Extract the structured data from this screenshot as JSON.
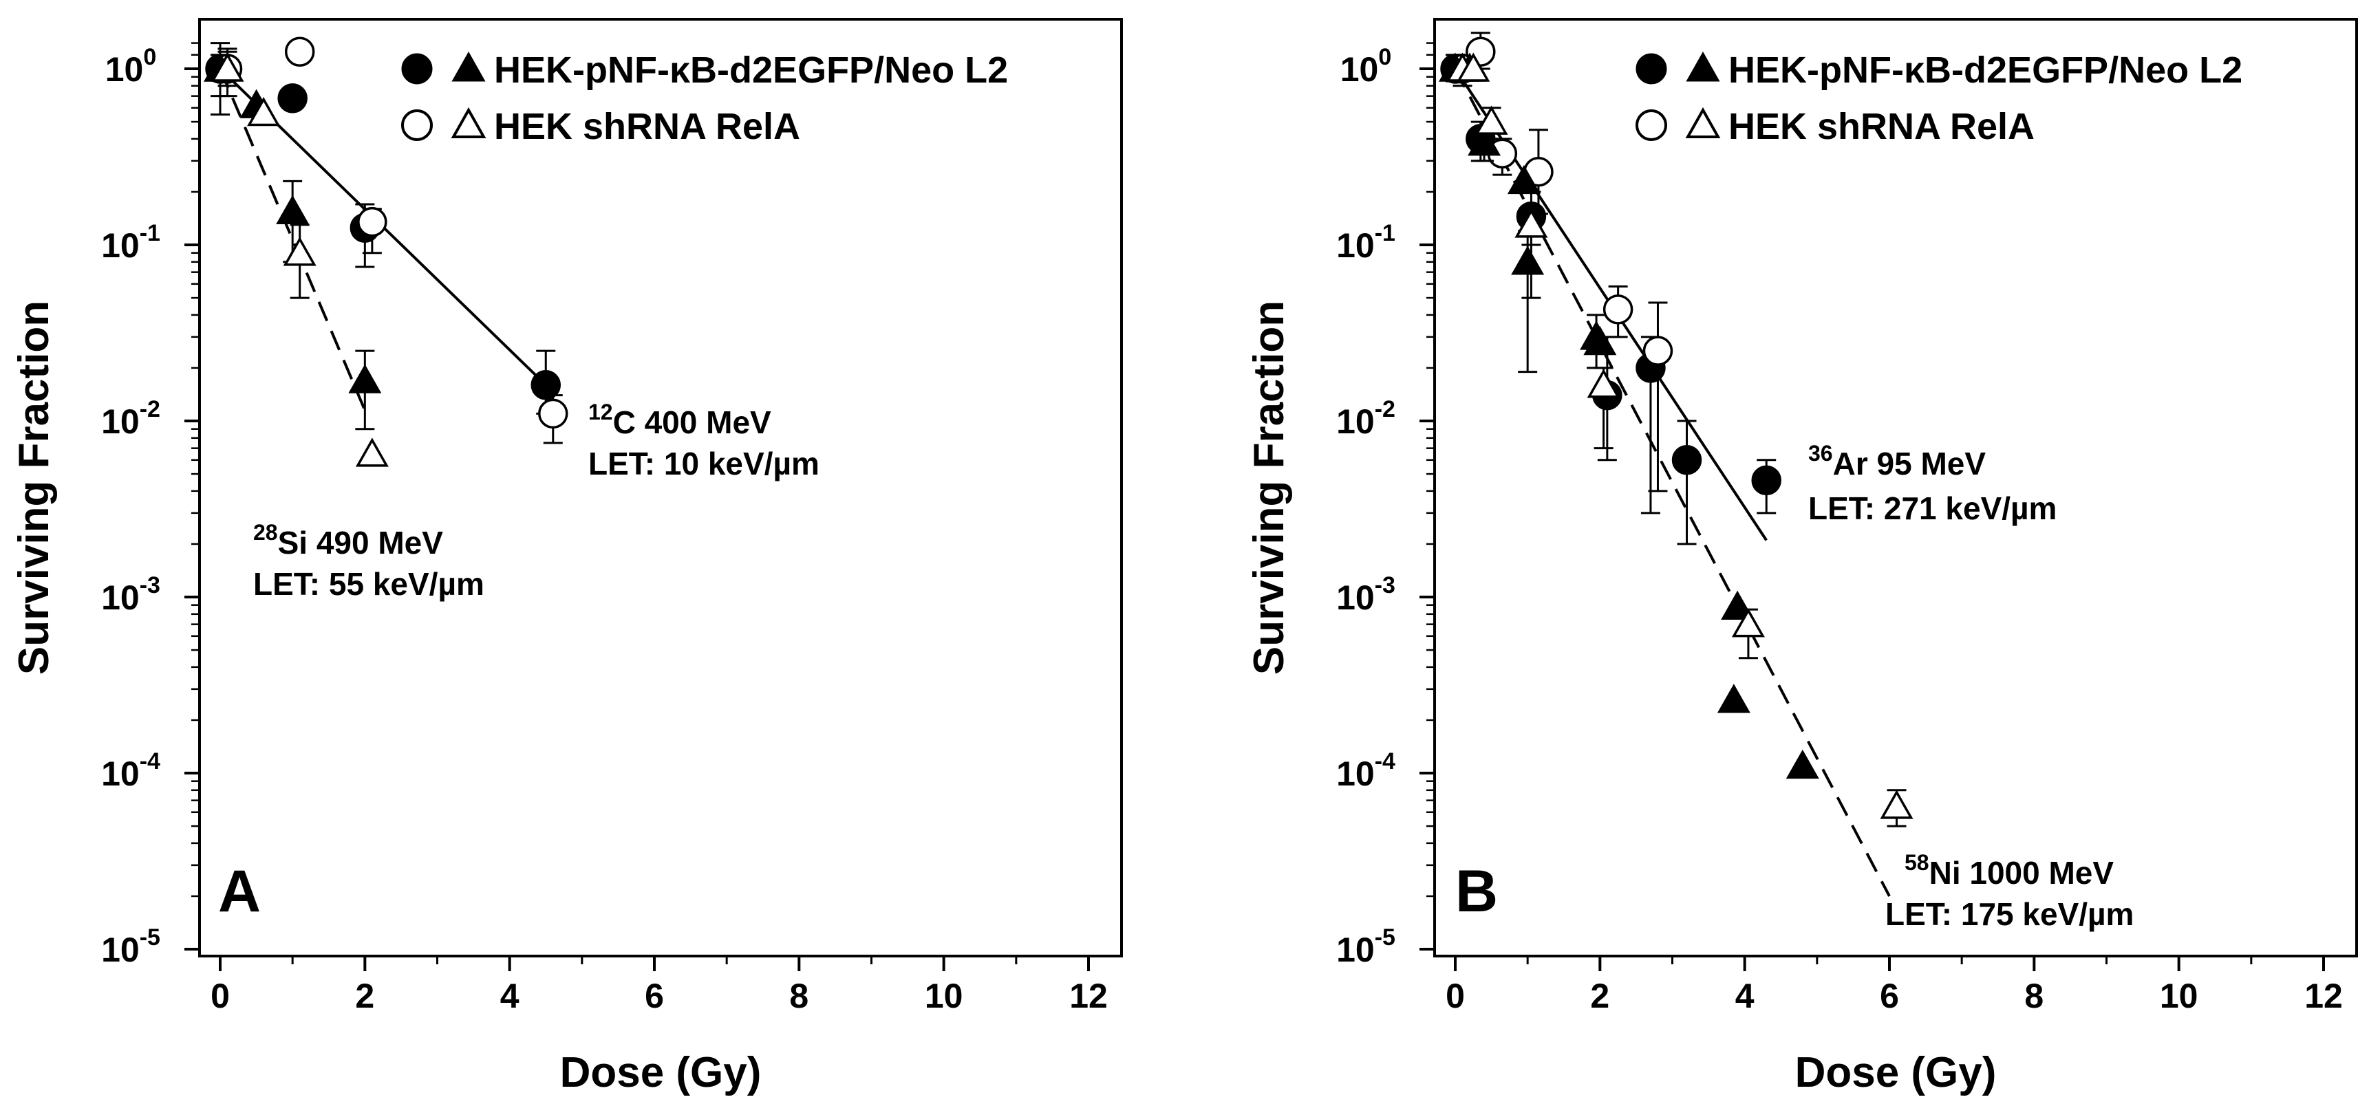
{
  "figure": {
    "legend": {
      "series1": "HEK-pNF-κB-d2EGFP/Neo L2",
      "series2": "HEK shRNA RelA"
    },
    "colors": {
      "filled": "#000000",
      "open": "#ffffff",
      "stroke": "#000000"
    }
  },
  "chart_data": [
    {
      "type": "scatter",
      "panel": "A",
      "title": "",
      "xlabel": "Dose (Gy)",
      "ylabel": "Surviving Fraction",
      "xlim": [
        0,
        12
      ],
      "ylim": [
        1e-05,
        1.5
      ],
      "yscale": "log",
      "x_ticks": [
        0,
        2,
        4,
        6,
        8,
        10,
        12
      ],
      "y_ticks": [
        {
          "value": 1,
          "base": "10",
          "exp": "0"
        },
        {
          "value": 0.1,
          "base": "10",
          "exp": "-1"
        },
        {
          "value": 0.01,
          "base": "10",
          "exp": "-2"
        },
        {
          "value": 0.001,
          "base": "10",
          "exp": "-3"
        },
        {
          "value": 0.0001,
          "base": "10",
          "exp": "-4"
        },
        {
          "value": 1e-05,
          "base": "10",
          "exp": "-5"
        }
      ],
      "series": [
        {
          "name": "HEK-pNF-κB-d2EGFP/Neo L2 (12C)",
          "marker": "filled-circle",
          "points": [
            {
              "x": 0,
              "y": 1.0,
              "err": [
                0.7,
                1.4
              ]
            },
            {
              "x": 1.0,
              "y": 0.68
            },
            {
              "x": 2.0,
              "y": 0.125,
              "err": [
                0.075,
                0.17
              ]
            },
            {
              "x": 4.5,
              "y": 0.016,
              "err": [
                0.011,
                0.025
              ]
            }
          ]
        },
        {
          "name": "HEK shRNA RelA (12C)",
          "marker": "open-circle",
          "points": [
            {
              "x": 0.1,
              "y": 1.0,
              "err": [
                0.8,
                1.25
              ]
            },
            {
              "x": 1.1,
              "y": 1.25
            },
            {
              "x": 2.1,
              "y": 0.135,
              "err": [
                0.09,
                0.16
              ]
            },
            {
              "x": 4.6,
              "y": 0.011,
              "err": [
                0.0075,
                0.014
              ]
            }
          ]
        },
        {
          "name": "HEK-pNF-κB-d2EGFP/Neo L2 (28Si)",
          "marker": "filled-triangle",
          "points": [
            {
              "x": 0,
              "y": 1.0,
              "err": [
                0.55,
                1.2
              ]
            },
            {
              "x": 0.5,
              "y": 0.62
            },
            {
              "x": 1.0,
              "y": 0.155,
              "err": [
                0.08,
                0.23
              ]
            },
            {
              "x": 2.0,
              "y": 0.017,
              "err": [
                0.009,
                0.025
              ]
            }
          ]
        },
        {
          "name": "HEK shRNA RelA (28Si)",
          "marker": "open-triangle",
          "points": [
            {
              "x": 0.1,
              "y": 1.0,
              "err": [
                0.7,
                1.3
              ]
            },
            {
              "x": 0.6,
              "y": 0.56
            },
            {
              "x": 1.1,
              "y": 0.09,
              "err": [
                0.05,
                0.13
              ]
            },
            {
              "x": 2.1,
              "y": 0.0065
            }
          ]
        }
      ],
      "fits": [
        {
          "name": "12C fit",
          "style": "solid",
          "x": [
            0,
            4.5
          ],
          "y": [
            1.0,
            0.016
          ]
        },
        {
          "name": "28Si fit",
          "style": "dashed",
          "x": [
            0,
            2.0
          ],
          "y": [
            1.0,
            0.0115
          ]
        }
      ],
      "annotations": [
        {
          "mass": "12",
          "ion": "C 400 MeV",
          "let": "LET: 10 keV/µm"
        },
        {
          "mass": "28",
          "ion": "Si 490 MeV",
          "let": "LET: 55 keV/µm"
        }
      ],
      "panel_letter": "A"
    },
    {
      "type": "scatter",
      "panel": "B",
      "title": "",
      "xlabel": "Dose (Gy)",
      "ylabel": "Surviving Fraction",
      "xlim": [
        0,
        12
      ],
      "ylim": [
        1e-05,
        1.5
      ],
      "yscale": "log",
      "x_ticks": [
        0,
        2,
        4,
        6,
        8,
        10,
        12
      ],
      "y_ticks": [
        {
          "value": 1,
          "base": "10",
          "exp": "0"
        },
        {
          "value": 0.1,
          "base": "10",
          "exp": "-1"
        },
        {
          "value": 0.01,
          "base": "10",
          "exp": "-2"
        },
        {
          "value": 0.001,
          "base": "10",
          "exp": "-3"
        },
        {
          "value": 0.0001,
          "base": "10",
          "exp": "-4"
        },
        {
          "value": 1e-05,
          "base": "10",
          "exp": "-5"
        }
      ],
      "series": [
        {
          "name": "HEK-pNF-κB-d2EGFP/Neo L2 (36Ar)",
          "marker": "filled-circle",
          "points": [
            {
              "x": 0,
              "y": 1.0,
              "err": [
                0.85,
                1.2
              ]
            },
            {
              "x": 0.35,
              "y": 0.4,
              "err": [
                0.3,
                0.5
              ]
            },
            {
              "x": 1.05,
              "y": 0.145,
              "err": [
                0.05,
                0.2
              ]
            },
            {
              "x": 2.1,
              "y": 0.014,
              "err": [
                0.006,
                0.03
              ]
            },
            {
              "x": 2.7,
              "y": 0.02,
              "err": [
                0.003,
                0.03
              ]
            },
            {
              "x": 3.2,
              "y": 0.006,
              "err": [
                0.002,
                0.01
              ]
            },
            {
              "x": 4.3,
              "y": 0.0046,
              "err": [
                0.003,
                0.006
              ]
            }
          ]
        },
        {
          "name": "HEK shRNA RelA (36Ar)",
          "marker": "open-circle",
          "points": [
            {
              "x": 0.1,
              "y": 1.0,
              "err": [
                0.8,
                1.2
              ]
            },
            {
              "x": 0.35,
              "y": 1.25,
              "err": [
                1.0,
                1.6
              ]
            },
            {
              "x": 0.65,
              "y": 0.33,
              "err": [
                0.25,
                0.4
              ]
            },
            {
              "x": 1.15,
              "y": 0.26,
              "err": [
                0.15,
                0.45
              ]
            },
            {
              "x": 2.25,
              "y": 0.043,
              "err": [
                0.03,
                0.058
              ]
            },
            {
              "x": 2.8,
              "y": 0.025,
              "err": [
                0.004,
                0.047
              ]
            }
          ]
        },
        {
          "name": "HEK-pNF-κB-d2EGFP/Neo L2 (58Ni)",
          "marker": "filled-triangle",
          "points": [
            {
              "x": 0,
              "y": 1.0
            },
            {
              "x": 0.2,
              "y": 1.0
            },
            {
              "x": 0.4,
              "y": 0.38,
              "err": [
                0.3,
                0.45
              ]
            },
            {
              "x": 0.95,
              "y": 0.23
            },
            {
              "x": 1.0,
              "y": 0.08,
              "err": [
                0.019,
                0.12
              ]
            },
            {
              "x": 1.95,
              "y": 0.03,
              "err": [
                0.02,
                0.04
              ]
            },
            {
              "x": 2.0,
              "y": 0.028
            },
            {
              "x": 3.9,
              "y": 0.00088
            },
            {
              "x": 3.85,
              "y": 0.00026
            },
            {
              "x": 4.8,
              "y": 0.00011
            }
          ]
        },
        {
          "name": "HEK shRNA RelA (58Ni)",
          "marker": "open-triangle",
          "points": [
            {
              "x": 0.1,
              "y": 1.0
            },
            {
              "x": 0.25,
              "y": 1.0
            },
            {
              "x": 0.5,
              "y": 0.5,
              "err": [
                0.4,
                0.6
              ]
            },
            {
              "x": 1.05,
              "y": 0.13,
              "err": [
                0.1,
                0.16
              ]
            },
            {
              "x": 2.05,
              "y": 0.016,
              "err": [
                0.007,
                0.02
              ]
            },
            {
              "x": 4.05,
              "y": 0.0007,
              "err": [
                0.00045,
                0.00085
              ]
            },
            {
              "x": 6.1,
              "y": 6.5e-05,
              "err": [
                5e-05,
                8e-05
              ]
            }
          ]
        }
      ],
      "fits": [
        {
          "name": "36Ar fit",
          "style": "solid",
          "x": [
            0,
            4.3
          ],
          "y": [
            1.0,
            0.0021
          ]
        },
        {
          "name": "58Ni fit",
          "style": "dashed",
          "x": [
            0,
            6.0
          ],
          "y": [
            1.0,
            2e-05
          ]
        }
      ],
      "annotations": [
        {
          "mass": "36",
          "ion": "Ar 95 MeV",
          "let": "LET: 271 keV/µm"
        },
        {
          "mass": "58",
          "ion": "Ni 1000 MeV",
          "let": "LET: 175 keV/µm"
        }
      ],
      "panel_letter": "B"
    }
  ]
}
